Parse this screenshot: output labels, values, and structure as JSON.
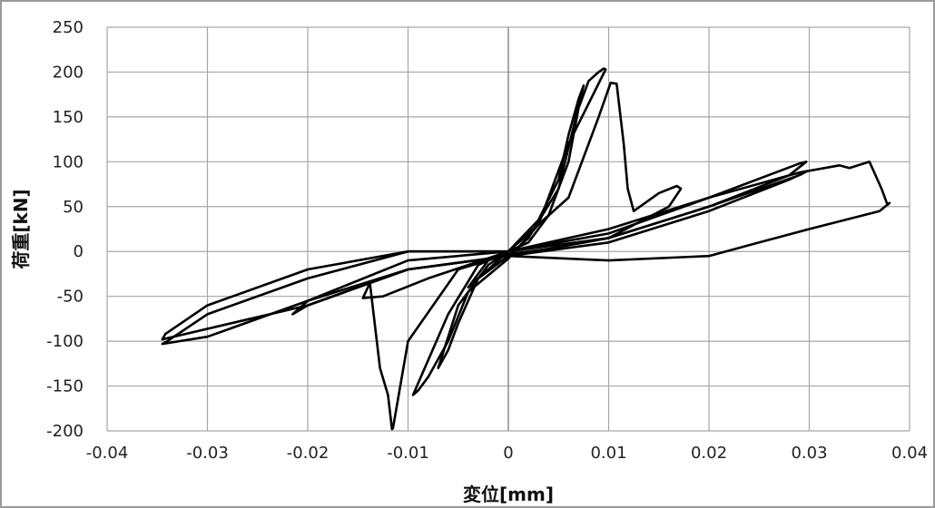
{
  "chart_data": {
    "type": "line",
    "title": "",
    "xlabel": "変位[mm]",
    "ylabel": "荷重[kN]",
    "xlim": [
      -0.04,
      0.04
    ],
    "ylim": [
      -200,
      250
    ],
    "x_ticks": [
      "-0.04",
      "-0.03",
      "-0.02",
      "-0.01",
      "0",
      "0.01",
      "0.02",
      "0.03",
      "0.04"
    ],
    "y_ticks": [
      "250",
      "200",
      "150",
      "100",
      "50",
      "0",
      "-50",
      "-100",
      "-150",
      "-200"
    ],
    "grid": true,
    "legend": "none",
    "series": [
      {
        "color": "#000000",
        "x": [
          0,
          0.001,
          0.002,
          0.003,
          0.004,
          0.003,
          0.002,
          0.001,
          0,
          -0.001,
          -0.002,
          -0.003,
          -0.004,
          -0.003,
          -0.002,
          -0.001,
          0
        ],
        "y": [
          0,
          10,
          20,
          30,
          40,
          25,
          10,
          5,
          0,
          -10,
          -20,
          -30,
          -40,
          -25,
          -10,
          -5,
          0
        ]
      },
      {
        "color": "#000000",
        "x": [
          0,
          0.003,
          0.005,
          0.006,
          0.007,
          0.0075,
          0.005,
          0.002,
          0,
          -0.003,
          -0.005,
          -0.006,
          -0.007,
          -0.005,
          -0.002,
          0
        ],
        "y": [
          0,
          35,
          80,
          130,
          170,
          185,
          70,
          15,
          -5,
          -30,
          -80,
          -110,
          -130,
          -60,
          -15,
          0
        ]
      },
      {
        "color": "#000000",
        "x": [
          0,
          0.004,
          0.006,
          0.007,
          0.008,
          0.009,
          0.0095,
          0.0097,
          0.006,
          0.003,
          0,
          -0.004,
          -0.006,
          -0.008,
          -0.009,
          -0.0095,
          -0.006,
          -0.003,
          0
        ],
        "y": [
          0,
          40,
          100,
          160,
          190,
          200,
          204,
          203,
          120,
          30,
          -8,
          -45,
          -100,
          -140,
          -155,
          -160,
          -70,
          -15,
          0
        ]
      },
      {
        "color": "#000000",
        "x": [
          0,
          0.006,
          0.009,
          0.0102,
          0.0108,
          0.0115,
          0.0119,
          0.0125,
          0.015,
          0.0168,
          0.0172,
          0.016,
          0.01,
          0.004,
          0,
          -0.005,
          -0.01,
          -0.0115,
          -0.0116,
          -0.012,
          -0.0128,
          -0.0138,
          -0.0145,
          -0.0125,
          -0.008,
          -0.004,
          0
        ],
        "y": [
          0,
          60,
          150,
          188,
          187,
          120,
          70,
          45,
          65,
          73,
          70,
          50,
          15,
          3,
          -3,
          -20,
          -100,
          -197,
          -198,
          -160,
          -130,
          -35,
          -52,
          -50,
          -30,
          -15,
          0
        ]
      },
      {
        "color": "#000000",
        "x": [
          0,
          0.01,
          0.02,
          0.029,
          0.0297,
          0.028,
          0.02,
          0.01,
          0,
          -0.01,
          -0.02,
          -0.0215,
          -0.02,
          -0.01,
          0
        ],
        "y": [
          0,
          15,
          50,
          85,
          89,
          80,
          45,
          10,
          -5,
          -20,
          -60,
          -70,
          -55,
          -10,
          0
        ]
      },
      {
        "color": "#000000",
        "x": [
          0,
          0.01,
          0.02,
          0.029,
          0.0297,
          0.028,
          0.02,
          0.01,
          0,
          -0.01,
          -0.02,
          -0.0345,
          -0.0342,
          -0.03,
          -0.02,
          -0.01,
          0
        ],
        "y": [
          0,
          20,
          60,
          98,
          100,
          85,
          50,
          15,
          -5,
          -20,
          -60,
          -98,
          -92,
          -60,
          -20,
          0,
          0
        ]
      },
      {
        "color": "#000000",
        "x": [
          0,
          0.01,
          0.02,
          0.029,
          0.033,
          0.034,
          0.036,
          0.0372,
          0.0378,
          0.038,
          0.037,
          0.03,
          0.025,
          0.02,
          0.01,
          0,
          -0.01,
          -0.02,
          -0.03,
          -0.0345,
          -0.034,
          -0.03,
          -0.02,
          -0.01,
          0
        ],
        "y": [
          0,
          25,
          60,
          88,
          96,
          93,
          100,
          70,
          52,
          54,
          45,
          25,
          10,
          -5,
          -10,
          -5,
          -20,
          -55,
          -95,
          -103,
          -100,
          -70,
          -30,
          0,
          0
        ]
      }
    ]
  }
}
